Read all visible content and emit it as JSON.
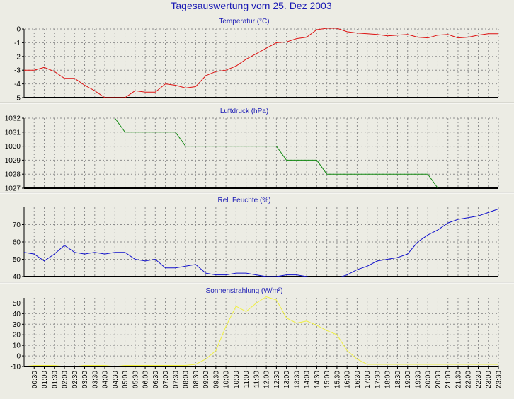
{
  "page_title": "Tagesauswertung vom 25. Dez 2003",
  "colors": {
    "background": "#ecece4",
    "title_text": "#1a1ab4",
    "grid": "#8c8c8c",
    "temperature": "#dd1111",
    "pressure": "#118811",
    "humidity": "#1111cc",
    "solar": "#f0f040"
  },
  "time_labels": [
    "00:30",
    "01:00",
    "01:30",
    "02:00",
    "02:30",
    "03:00",
    "03:30",
    "04:00",
    "04:30",
    "05:00",
    "05:30",
    "06:00",
    "06:30",
    "07:00",
    "07:30",
    "08:00",
    "08:30",
    "09:00",
    "09:30",
    "10:00",
    "10:30",
    "11:00",
    "11:30",
    "12:00",
    "12:30",
    "13:00",
    "13:30",
    "14:00",
    "14:30",
    "15:00",
    "15:30",
    "16:00",
    "16:30",
    "17:00",
    "17:30",
    "18:00",
    "18:30",
    "19:00",
    "19:30",
    "20:00",
    "20:30",
    "21:00",
    "21:30",
    "22:00",
    "22:30",
    "23:00",
    "23:30"
  ],
  "chart_data": [
    {
      "type": "line",
      "title": "Temperatur (°C)",
      "ylim": [
        -5,
        0
      ],
      "yticks": [
        0,
        -1,
        -2,
        -3,
        -4,
        -5
      ],
      "color": "#dd1111",
      "grid": true,
      "x": [
        0.0,
        0.5,
        1.0,
        1.5,
        2.0,
        2.5,
        3.0,
        3.5,
        4.0,
        4.5,
        5.0,
        5.5,
        6.0,
        6.5,
        7.0,
        7.5,
        8.0,
        8.5,
        9.0,
        9.5,
        10.0,
        10.5,
        11.0,
        11.5,
        12.0,
        12.5,
        13.0,
        13.5,
        14.0,
        14.5,
        15.0,
        15.5,
        16.0,
        16.5,
        17.0,
        17.5,
        18.0,
        18.5,
        19.0,
        19.5,
        20.0,
        20.5,
        21.0,
        21.5,
        22.0,
        22.5,
        23.0,
        23.5
      ],
      "values": [
        -3.0,
        -3.0,
        -2.8,
        -3.1,
        -3.6,
        -3.6,
        -4.1,
        -4.5,
        -5.0,
        -5.0,
        -5.0,
        -4.5,
        -4.6,
        -4.6,
        -4.0,
        -4.1,
        -4.3,
        -4.2,
        -3.4,
        -3.1,
        -3.0,
        -2.7,
        -2.2,
        -1.8,
        -1.4,
        -1.0,
        -0.95,
        -0.7,
        -0.6,
        -0.05,
        0.05,
        0.05,
        -0.2,
        -0.3,
        -0.35,
        -0.4,
        -0.5,
        -0.45,
        -0.4,
        -0.6,
        -0.65,
        -0.45,
        -0.4,
        -0.65,
        -0.6,
        -0.45,
        -0.35,
        -0.35
      ]
    },
    {
      "type": "line",
      "title": "Luftdruck (hPa)",
      "ylim": [
        1027,
        1032
      ],
      "yticks": [
        1032,
        1031,
        1030,
        1029,
        1028,
        1027
      ],
      "color": "#118811",
      "grid": true,
      "x": [
        4.5,
        5.0,
        5.5,
        6.0,
        6.5,
        7.0,
        7.5,
        8.0,
        8.5,
        9.0,
        9.5,
        10.0,
        10.5,
        11.0,
        11.5,
        12.0,
        12.5,
        13.0,
        13.5,
        14.0,
        14.5,
        15.0,
        15.5,
        16.0,
        16.5,
        17.0,
        17.5,
        18.0,
        18.5,
        19.0,
        19.5,
        20.0,
        20.5
      ],
      "values": [
        1032,
        1031,
        1031,
        1031,
        1031,
        1031,
        1031,
        1030,
        1030,
        1030,
        1030,
        1030,
        1030,
        1030,
        1030,
        1030,
        1030,
        1029,
        1029,
        1029,
        1029,
        1028,
        1028,
        1028,
        1028,
        1028,
        1028,
        1028,
        1028,
        1028,
        1028,
        1028,
        1027
      ]
    },
    {
      "type": "line",
      "title": "Rel. Feuchte (%)",
      "ylim": [
        40,
        80
      ],
      "yticks": [
        70,
        60,
        50,
        40
      ],
      "color": "#1111cc",
      "grid": true,
      "x": [
        0.0,
        0.5,
        1.0,
        1.5,
        2.0,
        2.5,
        3.0,
        3.5,
        4.0,
        4.5,
        5.0,
        5.5,
        6.0,
        6.5,
        7.0,
        7.5,
        8.0,
        8.5,
        9.0,
        9.5,
        10.0,
        10.5,
        11.0,
        11.5,
        12.0,
        12.5,
        13.0,
        13.5,
        14.0,
        14.5,
        15.0,
        15.5,
        16.0,
        16.5,
        17.0,
        17.5,
        18.0,
        18.5,
        19.0,
        19.5,
        20.0,
        20.5,
        21.0,
        21.5,
        22.0,
        22.5,
        23.0,
        23.5
      ],
      "values": [
        54,
        53,
        49,
        53,
        58,
        54,
        53,
        54,
        53,
        54,
        54,
        50,
        49,
        50,
        45,
        45,
        46,
        47,
        42,
        41,
        41,
        42,
        42,
        41,
        40,
        40,
        41,
        41,
        40,
        39,
        39,
        39,
        41,
        44,
        46,
        49,
        50,
        51,
        53,
        60,
        64,
        67,
        71,
        73,
        74,
        75,
        77,
        79
      ]
    },
    {
      "type": "line",
      "title": "Sonnenstrahlung (W/m²)",
      "ylim": [
        -10,
        55
      ],
      "yticks": [
        50,
        40,
        30,
        20,
        10,
        0,
        -10
      ],
      "color": "#f0f040",
      "grid": true,
      "x": [
        0.0,
        0.5,
        1.0,
        1.5,
        2.0,
        2.5,
        3.0,
        3.5,
        4.0,
        4.5,
        5.0,
        5.5,
        6.0,
        6.5,
        7.0,
        7.5,
        8.0,
        8.5,
        9.0,
        9.5,
        10.0,
        10.5,
        11.0,
        11.5,
        12.0,
        12.5,
        13.0,
        13.5,
        14.0,
        14.5,
        15.0,
        15.5,
        16.0,
        16.5,
        17.0,
        17.5,
        18.0,
        18.5,
        19.0,
        19.5,
        20.0,
        20.5,
        21.0,
        21.5,
        22.0,
        22.5,
        23.0,
        23.5
      ],
      "values": [
        -10,
        -9,
        -9,
        -9,
        -10,
        -10,
        -9,
        -9,
        -9,
        -10,
        -9,
        -9,
        -9,
        -9,
        -9,
        -9,
        -9,
        -8,
        -3,
        5,
        28,
        47,
        42,
        50,
        56,
        53,
        36,
        31,
        33,
        29,
        24,
        20,
        5,
        -3,
        -8,
        -8,
        -8,
        -8,
        -8,
        -8,
        -8,
        -8,
        -8,
        -8,
        -8,
        -8,
        -8,
        -8
      ]
    }
  ]
}
